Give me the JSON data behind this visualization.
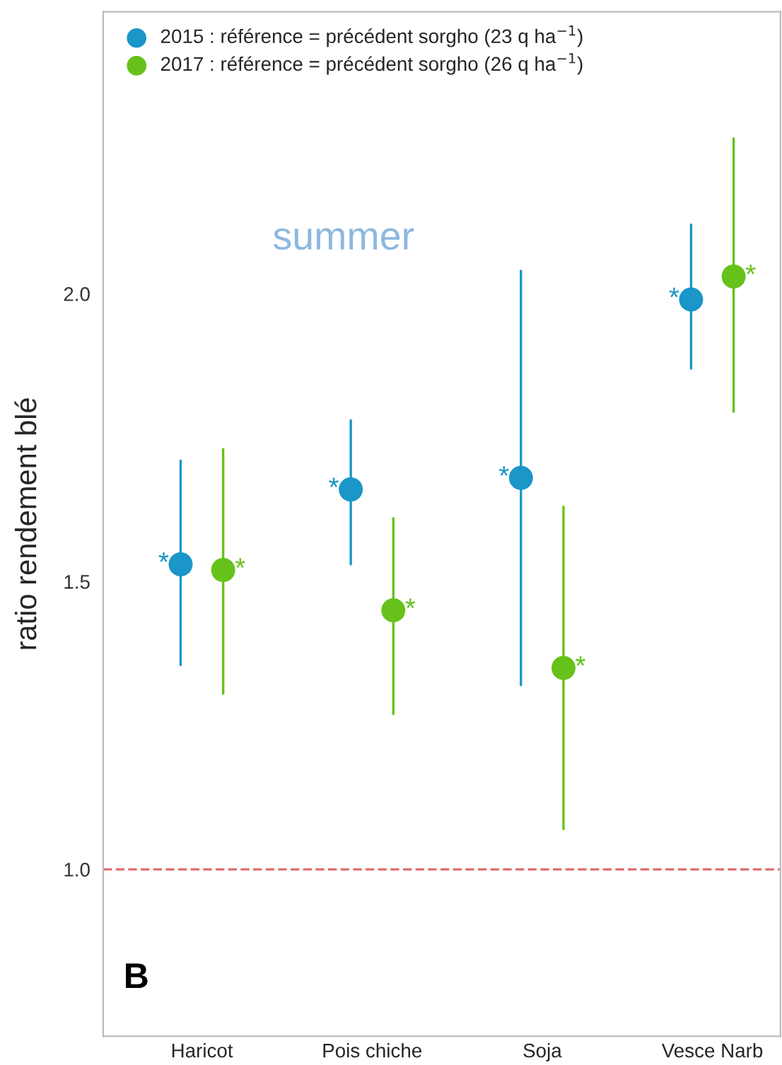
{
  "chart_data": {
    "type": "scatter",
    "ylabel": "ratio rendement blé",
    "categories": [
      "Haricot",
      "Pois chiche",
      "Soja",
      "Vesce Narb"
    ],
    "series": [
      {
        "name": "2015 : référence = précédent sorgho (23 q ha$^{−1}$)",
        "color": "#1a96c8",
        "values": [
          1.53,
          1.66,
          1.68,
          1.99
        ],
        "value_labels": [
          "*",
          "*",
          "*",
          "*"
        ],
        "errors": [
          [
            1.355,
            1.71
          ],
          [
            1.53,
            1.78
          ],
          [
            1.32,
            2.04
          ],
          [
            1.87,
            2.12
          ]
        ]
      },
      {
        "name": "2017 : référence = précédent sorgho (26 q ha$^{−1}$)",
        "color": "#66c21a",
        "values": [
          1.52,
          1.45,
          1.35,
          2.03
        ],
        "value_labels": [
          "*",
          "*",
          "*",
          "*"
        ],
        "errors": [
          [
            1.305,
            1.73
          ],
          [
            1.27,
            1.61
          ],
          [
            1.07,
            1.63
          ],
          [
            1.795,
            2.27
          ]
        ]
      }
    ],
    "ylim": [
      0.71,
      2.49
    ],
    "yticks": [
      {
        "value": 1.0,
        "label": "1.0"
      },
      {
        "value": 1.5,
        "label": "1.5"
      },
      {
        "value": 2.0,
        "label": "2.0"
      }
    ],
    "ref_lines": [
      {
        "axis": "y",
        "value": 1.0,
        "color": "#e07070",
        "line_style": "dashed"
      }
    ],
    "annotations": [
      "summer",
      "B"
    ],
    "marker": "circle",
    "grid": false,
    "legend": "top left"
  }
}
